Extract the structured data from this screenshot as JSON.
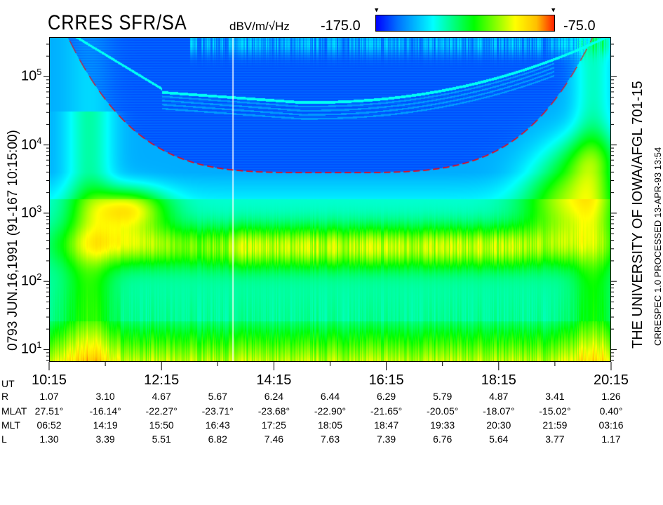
{
  "chart_data": {
    "type": "heatmap",
    "title": "CRRES SFR/SA",
    "colorbar": {
      "units": "dBV/m/√Hz",
      "min_label": "-175.0",
      "max_label": "-75.0",
      "min": -175.0,
      "max": -75.0,
      "colors": [
        "#0000ff",
        "#00ffff",
        "#00ff00",
        "#ffff00",
        "#ff2000"
      ]
    },
    "y_axis": {
      "scale": "log",
      "ticks": [
        {
          "value": 10,
          "label": "10",
          "exp": "1"
        },
        {
          "value": 100,
          "label": "10",
          "exp": "2"
        },
        {
          "value": 1000,
          "label": "10",
          "exp": "3"
        },
        {
          "value": 10000,
          "label": "10",
          "exp": "4"
        },
        {
          "value": 100000,
          "label": "10",
          "exp": "5"
        }
      ],
      "range": [
        6.6,
        380000
      ]
    },
    "x_axis": {
      "range": [
        "10:15",
        "20:15"
      ],
      "labeled_ticks": [
        "10:15",
        "12:15",
        "14:15",
        "16:15",
        "18:15",
        "20:15"
      ],
      "minor_ticks": [
        "11:15",
        "13:15",
        "15:15",
        "17:15",
        "19:15"
      ]
    },
    "left_label": "0793   JUN.16,1991   (91-167 10:15:00)",
    "right_label": "THE UNIVERSITY OF IOWA/AFGL 701-15",
    "right_sublabel": "CRRESPEC 1.0   PROCESSED 13-APR-93   13:54",
    "features": {
      "red_dashed_curve": "#ff0000",
      "white_vertical_line_time": "13:30"
    },
    "ephemeris": {
      "rows": [
        {
          "label": "UT",
          "values": [
            "10:15",
            "12:15",
            "14:15",
            "16:15",
            "18:15",
            "20:15"
          ]
        },
        {
          "label": "R",
          "values": [
            "1.07",
            "3.10",
            "4.67",
            "5.67",
            "6.24",
            "6.44",
            "6.29",
            "5.79",
            "4.87",
            "3.41",
            "1.26"
          ]
        },
        {
          "label": "MLAT",
          "values": [
            "27.51°",
            "-16.14°",
            "-22.27°",
            "-23.71°",
            "-23.68°",
            "-22.90°",
            "-21.65°",
            "-20.05°",
            "-18.07°",
            "-15.02°",
            "0.40°"
          ]
        },
        {
          "label": "MLT",
          "values": [
            "06:52",
            "14:19",
            "15:50",
            "16:43",
            "17:25",
            "18:05",
            "18:47",
            "19:33",
            "20:30",
            "21:59",
            "03:16"
          ]
        },
        {
          "label": "L",
          "values": [
            "1.30",
            "3.39",
            "5.51",
            "6.82",
            "7.46",
            "7.63",
            "7.39",
            "6.76",
            "5.64",
            "3.77",
            "1.17"
          ]
        }
      ]
    }
  }
}
